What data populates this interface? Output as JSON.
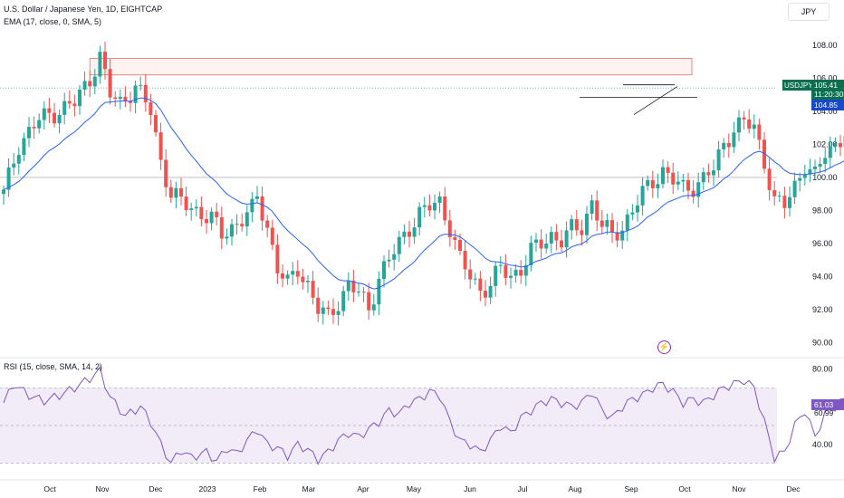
{
  "header": {
    "symbol_line": "U.S. Dollar / Japanese Yen, 1D, EIGHTCAP",
    "indicator_line": "EMA (17, close, 0, SMA, 5)",
    "currency_button": "JPY"
  },
  "rsi_legend": "RSI (15, close, SMA, 14, 2)",
  "price_badges": {
    "symbol": "USDJPY",
    "price": "105.41",
    "countdown": "11:20:30",
    "level": "104.85"
  },
  "rsi_badges": {
    "rsi": "61.03",
    "level": "60.99"
  },
  "colors": {
    "up": "#26a69a",
    "down": "#ef5350",
    "ema": "#2962ff",
    "rsi": "#7e57c2",
    "rsi_band": "#ede7f6",
    "zone_fill": "#fff3f2",
    "zone_border": "#ef5350",
    "badge_dark": "#0b6e4f",
    "badge_level": "#1848cc",
    "badge_rsi": "#7e57c2"
  },
  "chart_data": [
    {
      "type": "candlestick",
      "title": "U.S. Dollar / Japanese Yen, 1D, EIGHTCAP",
      "ylim": [
        89.2,
        109.2
      ],
      "y_ticks": [
        "108.00",
        "106.00",
        "104.00",
        "102.00",
        "100.00",
        "98.00",
        "96.00",
        "94.00",
        "92.00",
        "90.00"
      ],
      "x_ticks": [
        "Oct",
        "Nov",
        "Dec",
        "2023",
        "Feb",
        "Mar",
        "Apr",
        "May",
        "Jun",
        "Jul",
        "Aug",
        "Sep",
        "Oct",
        "Nov",
        "Dec"
      ],
      "indicator": "EMA (17, close, 0, SMA, 5)",
      "last_price": 105.41,
      "horizontal_levels": [
        104.85,
        100.0
      ],
      "resistance_zone": [
        106.2,
        107.2
      ],
      "price_path": [
        [
          0,
          99
        ],
        [
          3,
          102
        ],
        [
          7,
          103.5
        ],
        [
          14,
          104.5
        ],
        [
          17,
          106
        ],
        [
          19,
          107.3
        ],
        [
          21,
          105
        ],
        [
          23,
          104.5
        ],
        [
          26,
          105.5
        ],
        [
          29,
          104
        ],
        [
          31,
          101
        ],
        [
          33,
          99
        ],
        [
          35,
          98.5
        ],
        [
          38,
          98
        ],
        [
          41,
          97.5
        ],
        [
          43,
          96.5
        ],
        [
          45,
          97
        ],
        [
          47,
          97.5
        ],
        [
          49,
          98
        ],
        [
          50,
          98.8
        ],
        [
          52,
          97
        ],
        [
          54,
          94.5
        ],
        [
          56,
          93.5
        ],
        [
          58,
          94.5
        ],
        [
          60,
          93.5
        ],
        [
          62,
          92
        ],
        [
          64,
          91.5
        ],
        [
          66,
          92.5
        ],
        [
          68,
          93.5
        ],
        [
          70,
          93
        ],
        [
          72,
          92
        ],
        [
          74,
          94
        ],
        [
          76,
          95
        ],
        [
          78,
          96
        ],
        [
          80,
          97
        ],
        [
          82,
          97.8
        ],
        [
          84,
          98.2
        ],
        [
          86,
          98.5
        ],
        [
          88,
          97
        ],
        [
          90,
          95
        ],
        [
          92,
          94
        ],
        [
          94,
          93.2
        ],
        [
          96,
          93.5
        ],
        [
          98,
          94.5
        ],
        [
          100,
          94
        ],
        [
          102,
          94.5
        ],
        [
          104,
          95.5
        ],
        [
          106,
          96
        ],
        [
          108,
          96.5
        ],
        [
          110,
          96.2
        ],
        [
          112,
          96.8
        ],
        [
          114,
          97
        ],
        [
          116,
          98.5
        ],
        [
          118,
          97
        ],
        [
          120,
          96.5
        ],
        [
          122,
          97
        ],
        [
          124,
          98
        ],
        [
          126,
          99
        ],
        [
          128,
          99.8
        ],
        [
          130,
          100.4
        ],
        [
          132,
          99.8
        ],
        [
          134,
          99.3
        ],
        [
          136,
          99.5
        ],
        [
          138,
          99.9
        ],
        [
          140,
          100.5
        ],
        [
          142,
          102
        ],
        [
          144,
          103
        ],
        [
          146,
          103.3
        ],
        [
          148,
          103
        ],
        [
          150,
          101
        ],
        [
          152,
          98.5
        ],
        [
          154,
          98.3
        ],
        [
          156,
          99.5
        ],
        [
          158,
          100.8
        ],
        [
          160,
          100
        ],
        [
          162,
          101.5
        ],
        [
          164,
          102
        ],
        [
          166,
          102.7
        ],
        [
          168,
          103.6
        ],
        [
          170,
          104.4
        ],
        [
          172,
          104.2
        ],
        [
          174,
          104
        ],
        [
          176,
          104.8
        ],
        [
          178,
          105.4
        ],
        [
          180,
          105.3
        ],
        [
          182,
          105.4
        ]
      ],
      "total_bars": 246
    },
    {
      "type": "line",
      "title": "RSI (15, close, SMA, 14, 2)",
      "ylim": [
        25,
        85
      ],
      "y_ticks": [
        "80.00",
        "40.00"
      ],
      "band": [
        30,
        70
      ],
      "middle": 50,
      "last_value": 61.03,
      "level": 60.99,
      "rsi_path": [
        [
          0,
          62
        ],
        [
          2,
          72
        ],
        [
          5,
          66
        ],
        [
          8,
          63
        ],
        [
          11,
          66
        ],
        [
          14,
          70
        ],
        [
          17,
          75
        ],
        [
          19,
          79
        ],
        [
          21,
          65
        ],
        [
          24,
          55
        ],
        [
          27,
          60
        ],
        [
          29,
          52
        ],
        [
          31,
          40
        ],
        [
          33,
          30
        ],
        [
          35,
          37
        ],
        [
          37,
          33
        ],
        [
          40,
          36
        ],
        [
          42,
          31
        ],
        [
          44,
          38
        ],
        [
          46,
          35
        ],
        [
          48,
          42
        ],
        [
          50,
          48
        ],
        [
          52,
          40
        ],
        [
          54,
          38
        ],
        [
          56,
          34
        ],
        [
          58,
          40
        ],
        [
          60,
          37
        ],
        [
          62,
          32
        ],
        [
          64,
          36
        ],
        [
          66,
          42
        ],
        [
          68,
          46
        ],
        [
          70,
          44
        ],
        [
          72,
          48
        ],
        [
          74,
          52
        ],
        [
          76,
          58
        ],
        [
          78,
          56
        ],
        [
          80,
          62
        ],
        [
          82,
          64
        ],
        [
          84,
          68
        ],
        [
          86,
          66
        ],
        [
          88,
          52
        ],
        [
          90,
          42
        ],
        [
          92,
          40
        ],
        [
          94,
          36
        ],
        [
          96,
          42
        ],
        [
          98,
          50
        ],
        [
          100,
          46
        ],
        [
          102,
          54
        ],
        [
          104,
          58
        ],
        [
          106,
          62
        ],
        [
          108,
          64
        ],
        [
          110,
          62
        ],
        [
          112,
          60
        ],
        [
          114,
          62
        ],
        [
          116,
          68
        ],
        [
          118,
          58
        ],
        [
          120,
          54
        ],
        [
          122,
          60
        ],
        [
          124,
          64
        ],
        [
          126,
          66
        ],
        [
          128,
          70
        ],
        [
          130,
          72
        ],
        [
          132,
          68
        ],
        [
          134,
          62
        ],
        [
          136,
          64
        ],
        [
          138,
          62
        ],
        [
          140,
          66
        ],
        [
          142,
          70
        ],
        [
          144,
          72
        ],
        [
          146,
          74
        ],
        [
          148,
          70
        ],
        [
          150,
          52
        ],
        [
          152,
          33
        ],
        [
          154,
          36
        ],
        [
          156,
          50
        ],
        [
          158,
          58
        ],
        [
          160,
          44
        ],
        [
          162,
          56
        ],
        [
          164,
          60
        ],
        [
          166,
          64
        ],
        [
          168,
          70
        ],
        [
          170,
          66
        ],
        [
          172,
          64
        ],
        [
          174,
          62
        ],
        [
          176,
          64
        ],
        [
          178,
          62
        ],
        [
          180,
          61
        ],
        [
          182,
          61
        ]
      ],
      "trendline": [
        [
          169,
          70
        ],
        [
          197,
          63
        ]
      ]
    }
  ]
}
